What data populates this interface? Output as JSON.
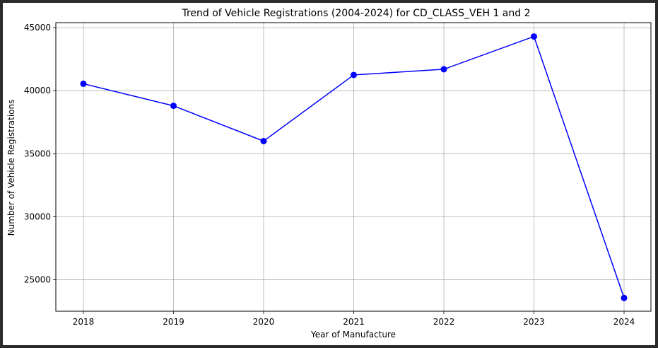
{
  "chart_data": {
    "type": "line",
    "title": "Trend of Vehicle Registrations (2004-2024) for CD_CLASS_VEH 1 and 2",
    "xlabel": "Year of Manufacture",
    "ylabel": "Number of Vehicle Registrations",
    "x": [
      "2018",
      "2019",
      "2020",
      "2021",
      "2022",
      "2023",
      "2024"
    ],
    "series": [
      {
        "values": [
          40550,
          38800,
          36000,
          41250,
          41700,
          44300,
          23550
        ],
        "color": "#0000ff",
        "marker": "circle"
      }
    ],
    "yticks": [
      25000,
      30000,
      35000,
      40000,
      45000
    ],
    "ylim": [
      22500,
      45400
    ],
    "grid": true,
    "legend": false
  }
}
